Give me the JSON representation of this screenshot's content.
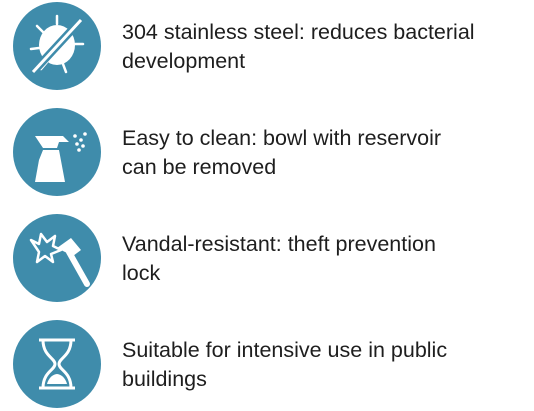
{
  "features": [
    {
      "lines": [
        "304 stainless steel: reduces bacterial",
        "development"
      ]
    },
    {
      "lines": [
        "Easy to clean: bowl with reservoir",
        "can be removed"
      ]
    },
    {
      "lines": [
        "Vandal-resistant: theft prevention",
        "lock"
      ]
    },
    {
      "lines": [
        "Suitable for intensive use in public",
        "buildings"
      ]
    }
  ]
}
